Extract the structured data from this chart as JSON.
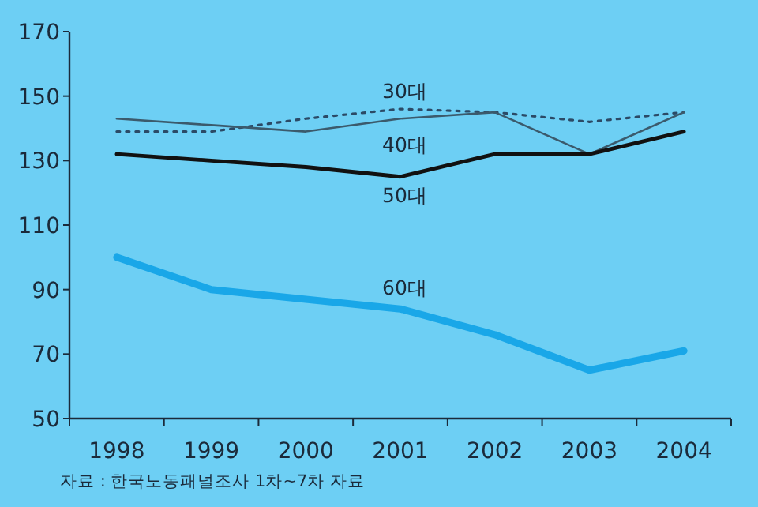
{
  "chart_data": {
    "type": "line",
    "categories": [
      "1998",
      "1999",
      "2000",
      "2001",
      "2002",
      "2003",
      "2004"
    ],
    "series": [
      {
        "name": "30대",
        "color": "#2b4a66",
        "line_style": "dotted",
        "values": [
          139,
          139,
          143,
          146,
          145,
          142,
          145
        ]
      },
      {
        "name": "40대",
        "color": "#3b5a6c",
        "line_style": "solid",
        "values": [
          143,
          141,
          139,
          143,
          145,
          132,
          145
        ]
      },
      {
        "name": "50대",
        "color": "#111111",
        "line_style": "solid",
        "values": [
          132,
          130,
          128,
          125,
          132,
          132,
          139
        ]
      },
      {
        "name": "60대",
        "color": "#19a7e8",
        "line_style": "solid",
        "values": [
          100,
          90,
          87,
          84,
          76,
          65,
          71
        ]
      }
    ],
    "ylim": [
      50,
      170
    ],
    "yticks": [
      50,
      70,
      90,
      110,
      130,
      150,
      170
    ],
    "grid": false,
    "marker": "none",
    "annotations": [
      "자료 : 한국노동패널조사 1차~7차 자료"
    ]
  }
}
